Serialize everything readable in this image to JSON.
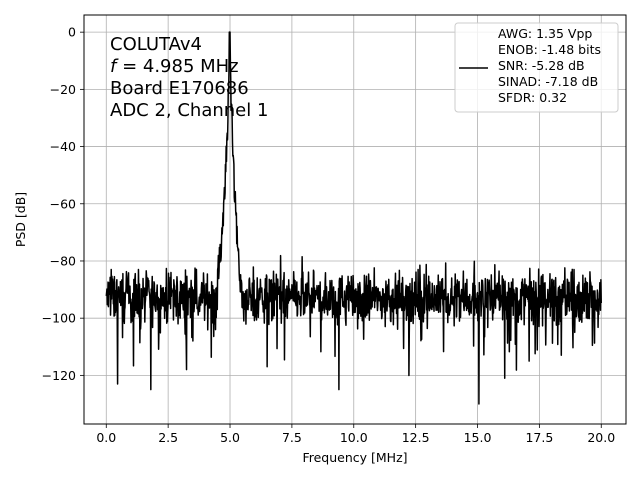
{
  "chart_data": {
    "type": "line",
    "xlabel": "Frequency [MHz]",
    "ylabel": "PSD [dB]",
    "xlim": [
      -0.9,
      21.0
    ],
    "ylim": [
      -137,
      6
    ],
    "grid": true,
    "x_ticks": [
      0.0,
      2.5,
      5.0,
      7.5,
      10.0,
      12.5,
      15.0,
      17.5,
      20.0
    ],
    "x_tick_labels": [
      "0.0",
      "2.5",
      "5.0",
      "7.5",
      "10.0",
      "12.5",
      "15.0",
      "17.5",
      "20.0"
    ],
    "y_ticks": [
      0,
      -20,
      -40,
      -60,
      -80,
      -100,
      -120
    ],
    "y_tick_labels": [
      "0",
      "−20",
      "−40",
      "−60",
      "−80",
      "−100",
      "−120"
    ],
    "annotation": {
      "line1": "COLUTAv4",
      "line2_symbol": "f",
      "line2_rest": " = 4.985 MHz",
      "line3": "Board E170686",
      "line4": "ADC 2, Channel 1"
    },
    "legend": {
      "position": "upper-right",
      "lines": [
        "AWG: 1.35 Vpp",
        "ENOB: -1.48 bits",
        "SNR: -5.28 dB",
        "SINAD: -7.18 dB",
        "SFDR: 0.32"
      ]
    },
    "series_color": "#000000",
    "series": [
      {
        "x_start": 0.0,
        "x_end": 20.0,
        "noise_floor_mean": -93,
        "noise_floor_spread": 8,
        "notable_dips": [
          {
            "x": 0.2,
            "y": -123
          },
          {
            "x": 0.45,
            "y": -123
          },
          {
            "x": 1.8,
            "y": -125
          },
          {
            "x": 3.25,
            "y": -118
          },
          {
            "x": 6.5,
            "y": -117
          },
          {
            "x": 9.4,
            "y": -125
          },
          {
            "x": 15.05,
            "y": -130
          },
          {
            "x": 16.1,
            "y": -121
          }
        ],
        "notable_spurs": [
          {
            "x": 0.2,
            "y": -83
          },
          {
            "x": 1.3,
            "y": -83
          },
          {
            "x": 12.6,
            "y": -83
          },
          {
            "x": 18.9,
            "y": -83
          }
        ],
        "peak": {
          "x": 4.985,
          "y": 0
        },
        "peak_profile": [
          {
            "x": 4.5,
            "y": -80
          },
          {
            "x": 4.7,
            "y": -65
          },
          {
            "x": 4.8,
            "y": -48
          },
          {
            "x": 4.9,
            "y": -28
          },
          {
            "x": 4.985,
            "y": 0
          },
          {
            "x": 5.05,
            "y": -20
          },
          {
            "x": 5.15,
            "y": -45
          },
          {
            "x": 5.3,
            "y": -70
          },
          {
            "x": 5.45,
            "y": -85
          }
        ]
      }
    ]
  }
}
